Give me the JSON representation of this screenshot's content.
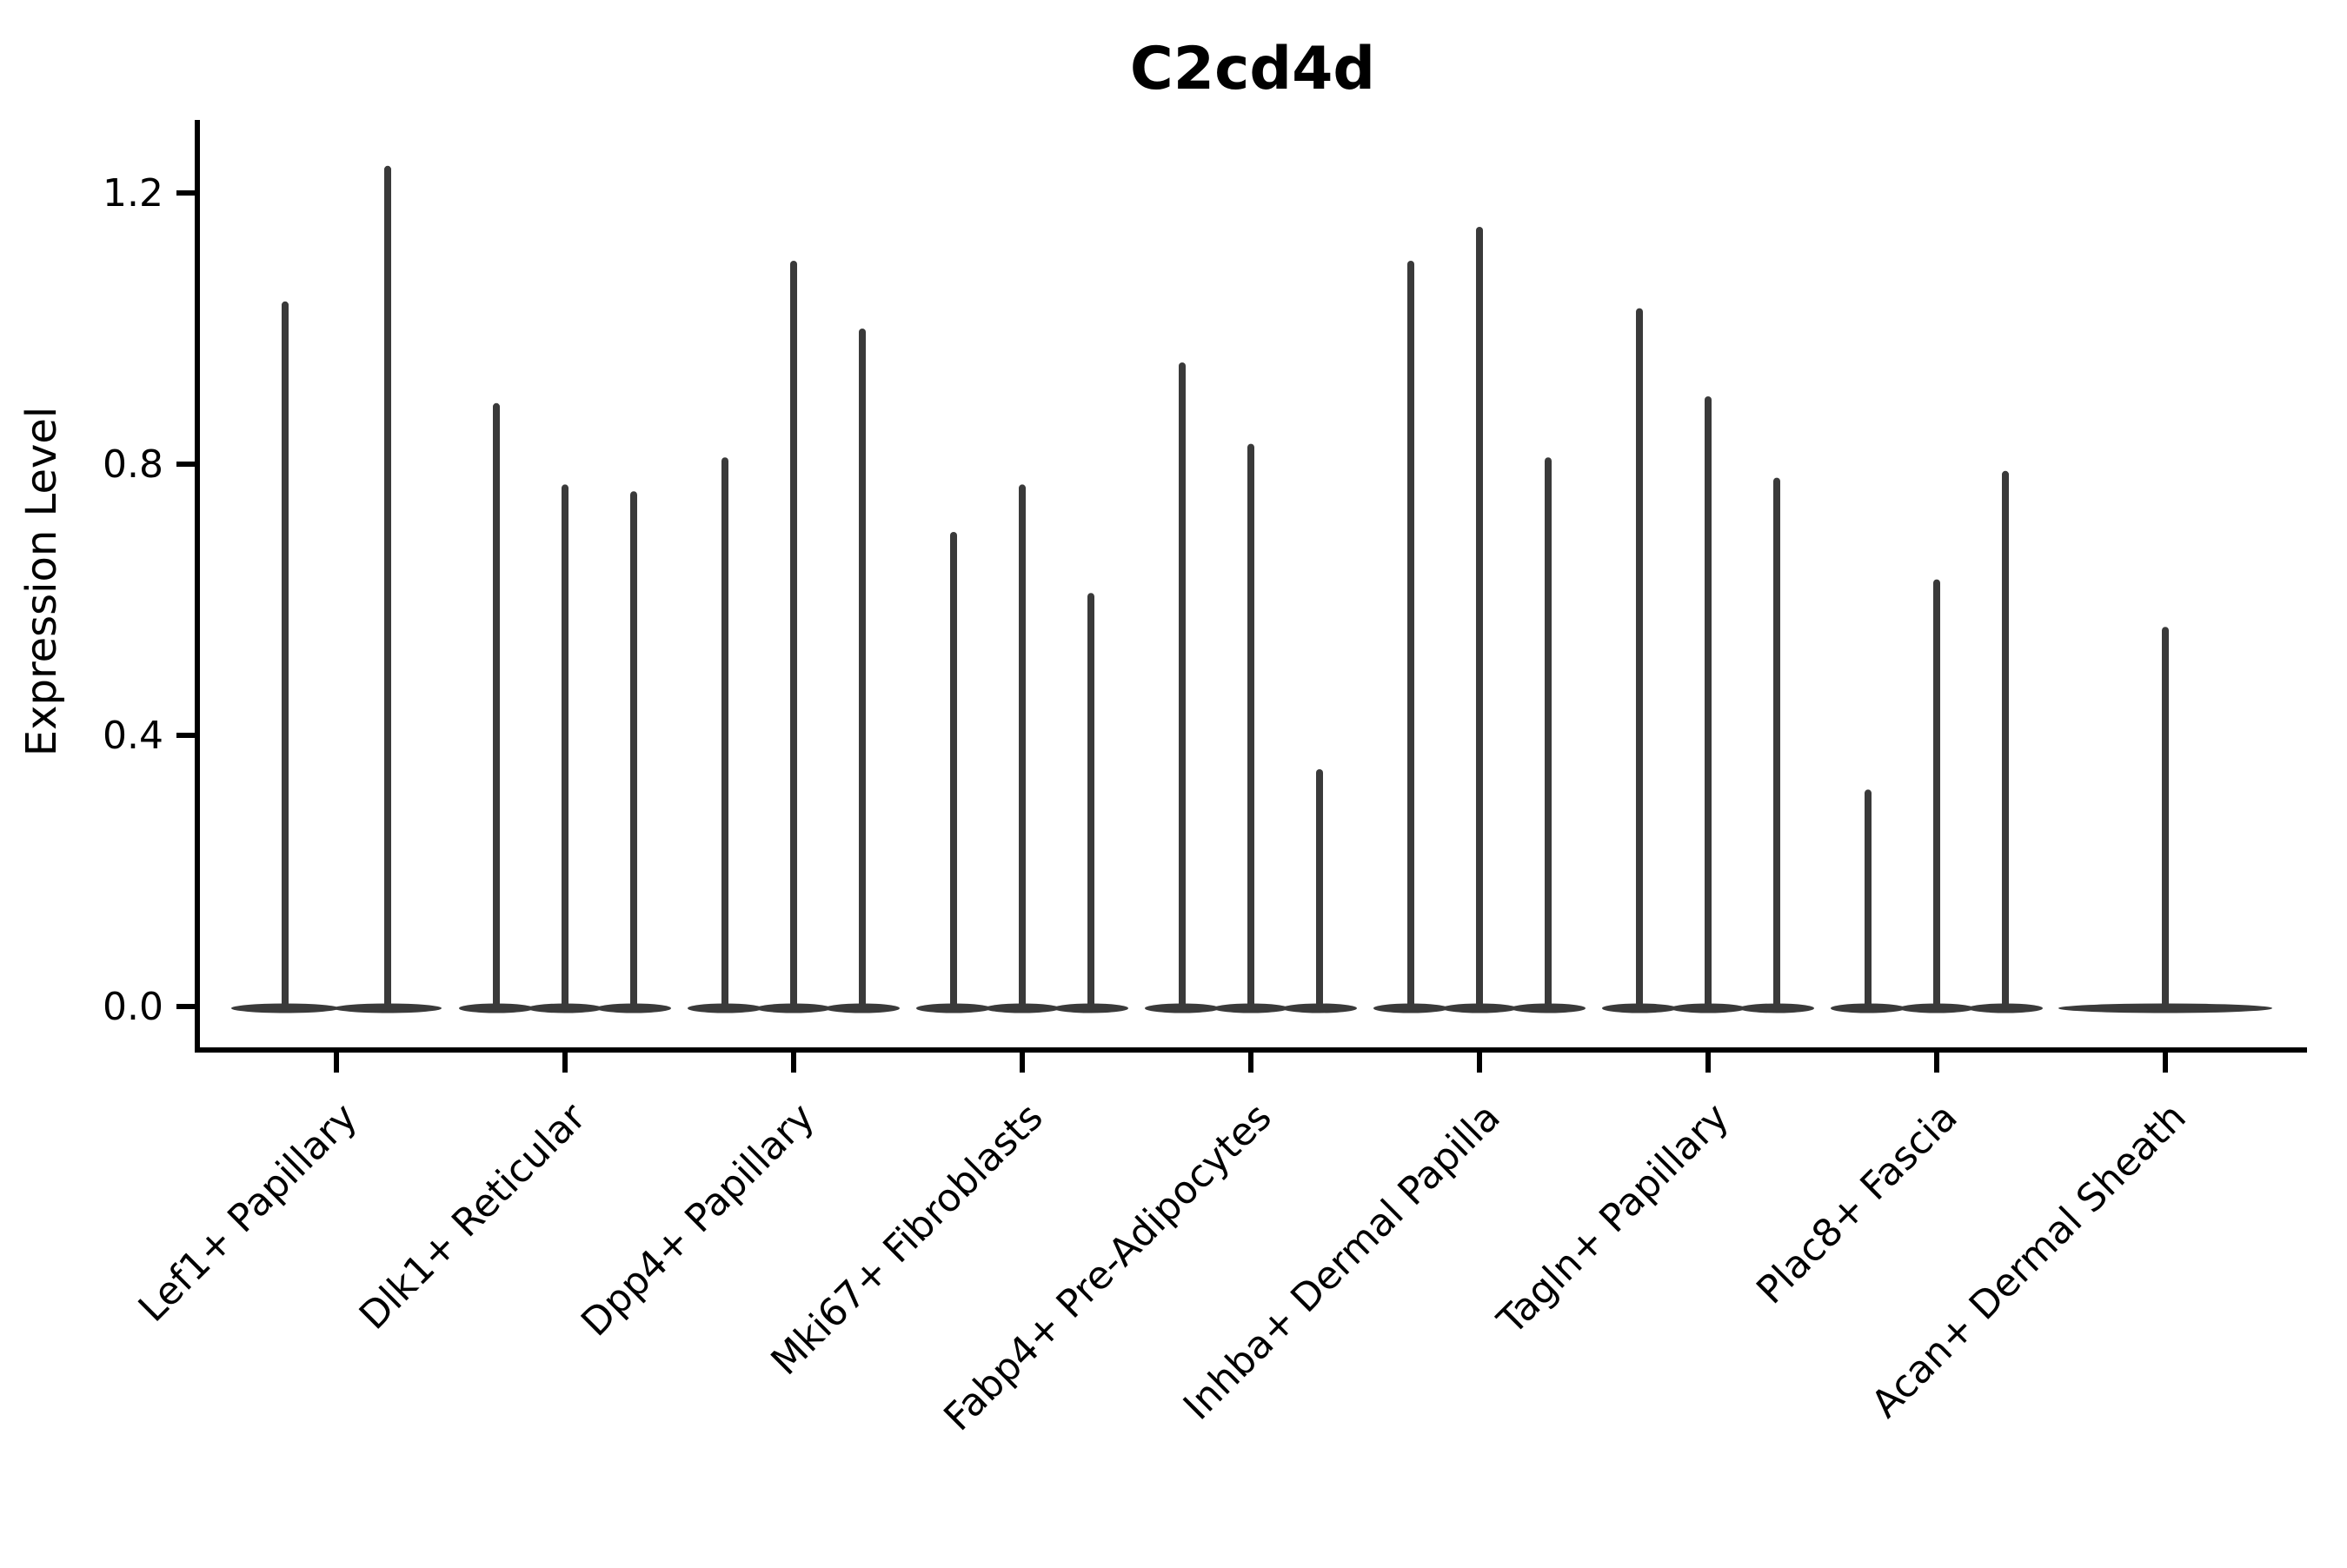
{
  "title": "C2cd4d",
  "chart_data": {
    "type": "violin",
    "title": "C2cd4d",
    "ylabel": "Expression Level",
    "xlabel": "",
    "ylim": [
      0,
      1.32
    ],
    "yticks": [
      0.0,
      0.4,
      0.8,
      1.2
    ],
    "ytick_labels": [
      "0.0",
      "0.4",
      "0.8",
      "1.2"
    ],
    "grid": false,
    "legend": "none",
    "description": "Violin plot of C2cd4d expression per fibroblast cluster; each cluster shows 1-3 very thin violins (bulk of cells at 0) whose tails reach the listed maximum expression values",
    "categories": [
      {
        "label": "Lef1+ Papillary",
        "violin_maxima": [
          1.04,
          1.24
        ]
      },
      {
        "label": "Dlk1+ Reticular",
        "violin_maxima": [
          0.89,
          0.77,
          0.76
        ]
      },
      {
        "label": "Dpp4+ Papillary",
        "violin_maxima": [
          0.81,
          1.1,
          1.0
        ]
      },
      {
        "label": "Mki67+ Fibroblasts",
        "violin_maxima": [
          0.7,
          0.77,
          0.61
        ]
      },
      {
        "label": "Fabp4+ Pre-Adipocytes",
        "violin_maxima": [
          0.95,
          0.83,
          0.35
        ]
      },
      {
        "label": "Inhba+ Dermal Papilla",
        "violin_maxima": [
          1.1,
          1.15,
          0.81
        ]
      },
      {
        "label": "Tagln+ Papillary",
        "violin_maxima": [
          1.03,
          0.9,
          0.78
        ]
      },
      {
        "label": "Plac8+ Fascia",
        "violin_maxima": [
          0.32,
          0.63,
          0.79
        ]
      },
      {
        "label": "Acan+ Dermal Sheath",
        "violin_maxima": [
          0.56
        ]
      }
    ],
    "colors": {
      "violin": "#3a3a3a",
      "axis": "#000000",
      "text": "#000000",
      "background": "#ffffff"
    }
  }
}
